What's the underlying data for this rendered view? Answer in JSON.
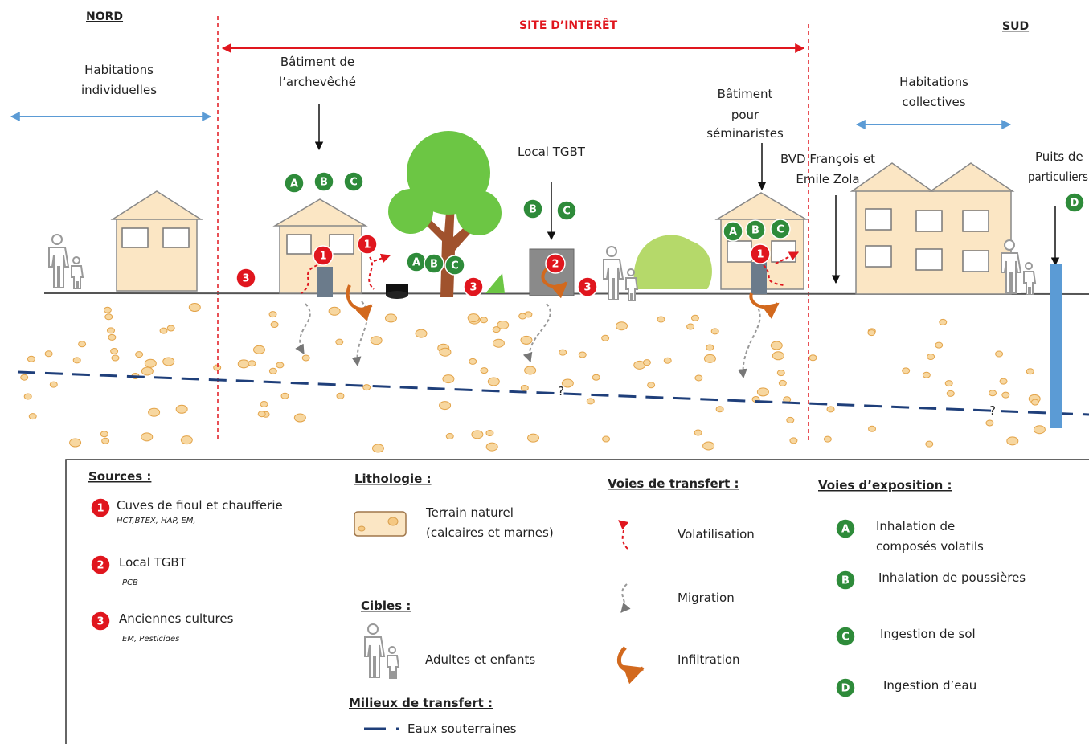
{
  "header": {
    "nord": "NORD",
    "site": "SITE D’INTERÊT",
    "sud": "SUD"
  },
  "scene": {
    "habitations_individuelles": [
      "Habitations",
      "individuelles"
    ],
    "batiment_archeveche": [
      "Bâtiment de",
      "l’archevêché"
    ],
    "local_tgbt": "Local TGBT",
    "batiment_seminaristes": [
      "Bâtiment",
      "pour",
      "séminaristes"
    ],
    "habitations_collectives": [
      "Habitations",
      "collectives"
    ],
    "bvd": [
      "BVD François et",
      "Emile Zola"
    ],
    "puits": [
      "Puits de",
      "particuliers"
    ],
    "question_marks": [
      "?",
      "?"
    ],
    "green_badges": [
      "A",
      "B",
      "C",
      "A",
      "B",
      "C",
      "B",
      "C",
      "A",
      "B",
      "C",
      "D"
    ],
    "red_badges": [
      "3",
      "1",
      "1",
      "3",
      "2",
      "3",
      "1"
    ]
  },
  "legend": {
    "sources": {
      "title": "Sources :",
      "items": [
        {
          "num": "1",
          "label": "Cuves de fioul et chaufferie",
          "detail": "HCT,BTEX, HAP, EM,"
        },
        {
          "num": "2",
          "label": "Local TGBT",
          "detail": "PCB"
        },
        {
          "num": "3",
          "label": "Anciennes cultures",
          "detail": "EM, Pesticides"
        }
      ]
    },
    "lithologie": {
      "title": "Lithologie :",
      "lines": [
        "Terrain naturel",
        "(calcaires et marnes)"
      ]
    },
    "cibles": {
      "title": "Cibles :",
      "label": "Adultes et enfants"
    },
    "milieux": {
      "title": "Milieux de transfert :",
      "label": "Eaux souterraines"
    },
    "transfert": {
      "title": "Voies de transfert :",
      "items": [
        "Volatilisation",
        "Migration",
        "Infiltration"
      ]
    },
    "exposition": {
      "title": "Voies d’exposition :",
      "items": [
        {
          "letter": "A",
          "lines": [
            "Inhalation de",
            "composés volatils"
          ]
        },
        {
          "letter": "B",
          "lines": [
            "Inhalation de poussières"
          ]
        },
        {
          "letter": "C",
          "lines": [
            "Ingestion de sol"
          ]
        },
        {
          "letter": "D",
          "lines": [
            "Ingestion d’eau"
          ]
        }
      ]
    }
  }
}
